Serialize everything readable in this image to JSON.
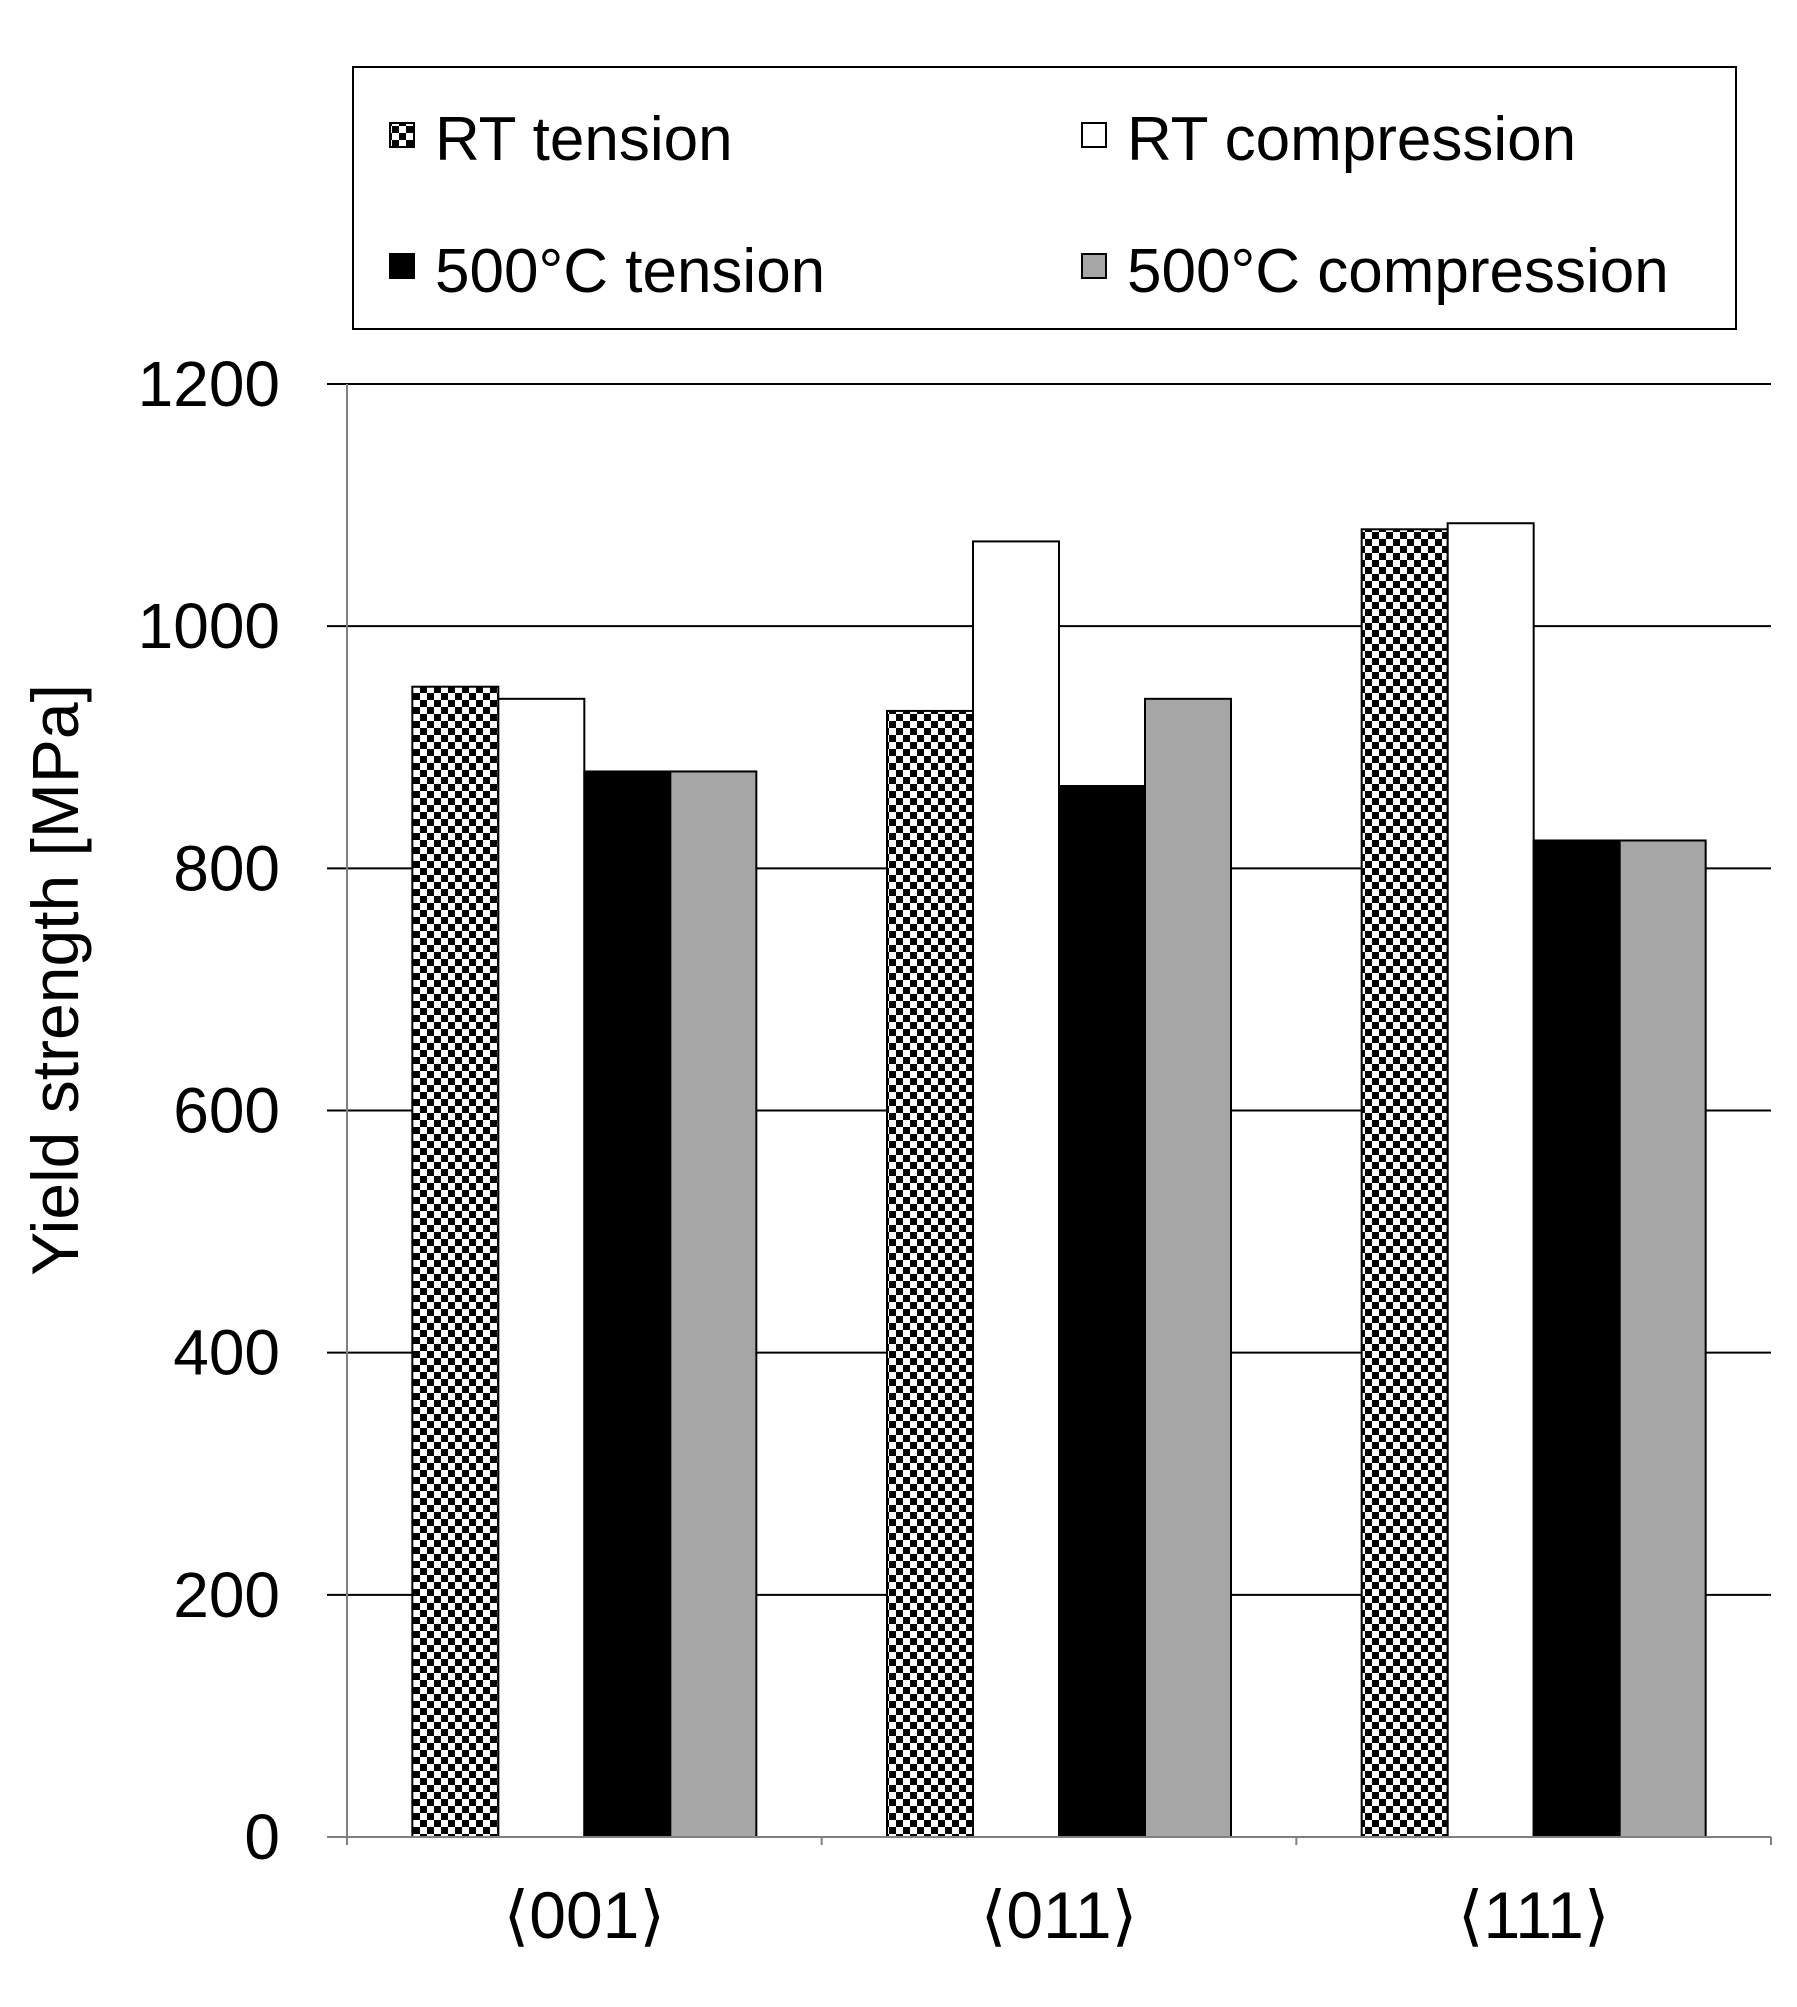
{
  "colors": {
    "rt_compression": "#ffffff",
    "tension_500": "#000000",
    "compression_500": "#a6a6a6",
    "checker_dark": "#000000",
    "checker_light": "#ffffff",
    "gridline": "#000000"
  },
  "chart_data": {
    "type": "bar",
    "title": "",
    "xlabel": "",
    "ylabel": "Yield strength [MPa]",
    "ylim": [
      0,
      1200
    ],
    "yticks": [
      "0",
      "200",
      "400",
      "600",
      "800",
      "1000",
      "1200"
    ],
    "grid": true,
    "legend_position": "top",
    "categories": [
      "⟨001⟩",
      "⟨011⟩",
      "⟨111⟩"
    ],
    "series": [
      {
        "name": "RT tension",
        "pattern": "checkerboard",
        "values": [
          950,
          930,
          1080
        ]
      },
      {
        "name": "RT compression",
        "pattern": "white",
        "values": [
          940,
          1070,
          1085
        ]
      },
      {
        "name": "500°C tension",
        "pattern": "black",
        "values": [
          880,
          868,
          823
        ]
      },
      {
        "name": "500°C compression",
        "pattern": "gray",
        "values": [
          880,
          940,
          823
        ]
      }
    ]
  }
}
